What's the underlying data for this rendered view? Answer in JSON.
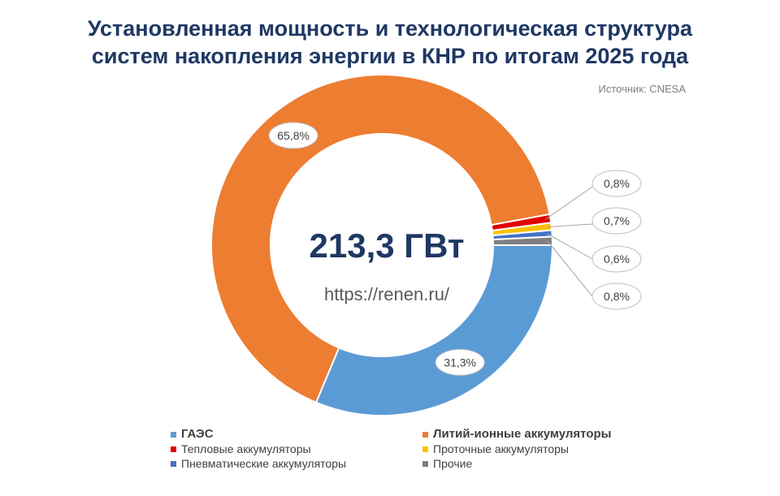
{
  "title_line1": "Установленная мощность и технологическая структура",
  "title_line2": "систем накопления энергии в КНР по итогам 2025 года",
  "source": "Источник: CNESA",
  "center_total": "213,3 ГВт",
  "center_url": "https://renen.ru/",
  "chart_data": {
    "type": "pie",
    "subtype": "donut",
    "title": "Установленная мощность и технологическая структура систем накопления энергии в КНР по итогам 2025 года",
    "center_text": "213,3 ГВт",
    "unit": "%",
    "categories": [
      "ГАЭС",
      "Литий-ионные аккумуляторы",
      "Тепловые аккумуляторы",
      "Проточные аккумуляторы",
      "Пневматические аккумуляторы",
      "Прочие"
    ],
    "values": [
      31.3,
      65.8,
      0.8,
      0.7,
      0.6,
      0.8
    ],
    "labels": [
      "31,3%",
      "65,8%",
      "0,8%",
      "0,7%",
      "0,6%",
      "0,8%"
    ],
    "colors": [
      "#5b9bd5",
      "#ed7d31",
      "#e00000",
      "#ffc000",
      "#4472c4",
      "#7f7f7f"
    ],
    "legend_position": "bottom"
  },
  "legend": [
    {
      "label": "ГАЭС",
      "color": "#5b9bd5",
      "bold": true
    },
    {
      "label": "Литий-ионные аккумуляторы",
      "color": "#ed7d31",
      "bold": true
    },
    {
      "label": "Тепловые аккумуляторы",
      "color": "#e00000",
      "bold": false
    },
    {
      "label": "Проточные аккумуляторы",
      "color": "#ffc000",
      "bold": false
    },
    {
      "label": "Пневматические аккумуляторы",
      "color": "#4472c4",
      "bold": false
    },
    {
      "label": "Прочие",
      "color": "#7f7f7f",
      "bold": false
    }
  ]
}
